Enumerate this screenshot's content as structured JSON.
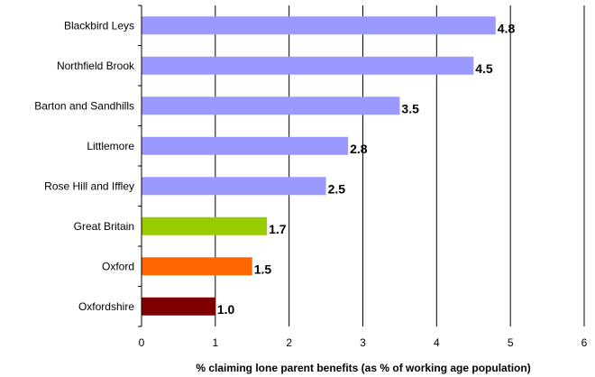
{
  "chart_data": {
    "type": "bar",
    "orientation": "horizontal",
    "categories": [
      "Blackbird Leys",
      "Northfield Brook",
      "Barton and Sandhills",
      "Littlemore",
      "Rose Hill and Iffley",
      "Great Britain",
      "Oxford",
      "Oxfordshire"
    ],
    "values": [
      4.8,
      4.5,
      3.5,
      2.8,
      2.5,
      1.7,
      1.5,
      1.0
    ],
    "value_labels": [
      "4.8",
      "4.5",
      "3.5",
      "2.8",
      "2.5",
      "1.7",
      "1.5",
      "1.0"
    ],
    "bar_colors": [
      "#9999ff",
      "#9999ff",
      "#9999ff",
      "#9999ff",
      "#9999ff",
      "#99cc00",
      "#ff6600",
      "#800000"
    ],
    "xlabel": "% claiming lone parent benefits (as % of working age population)",
    "ylabel": "",
    "xlim": [
      0,
      6
    ],
    "xticks": [
      "0",
      "1",
      "2",
      "3",
      "4",
      "5",
      "6"
    ],
    "grid": "vertical",
    "legend": "none"
  }
}
